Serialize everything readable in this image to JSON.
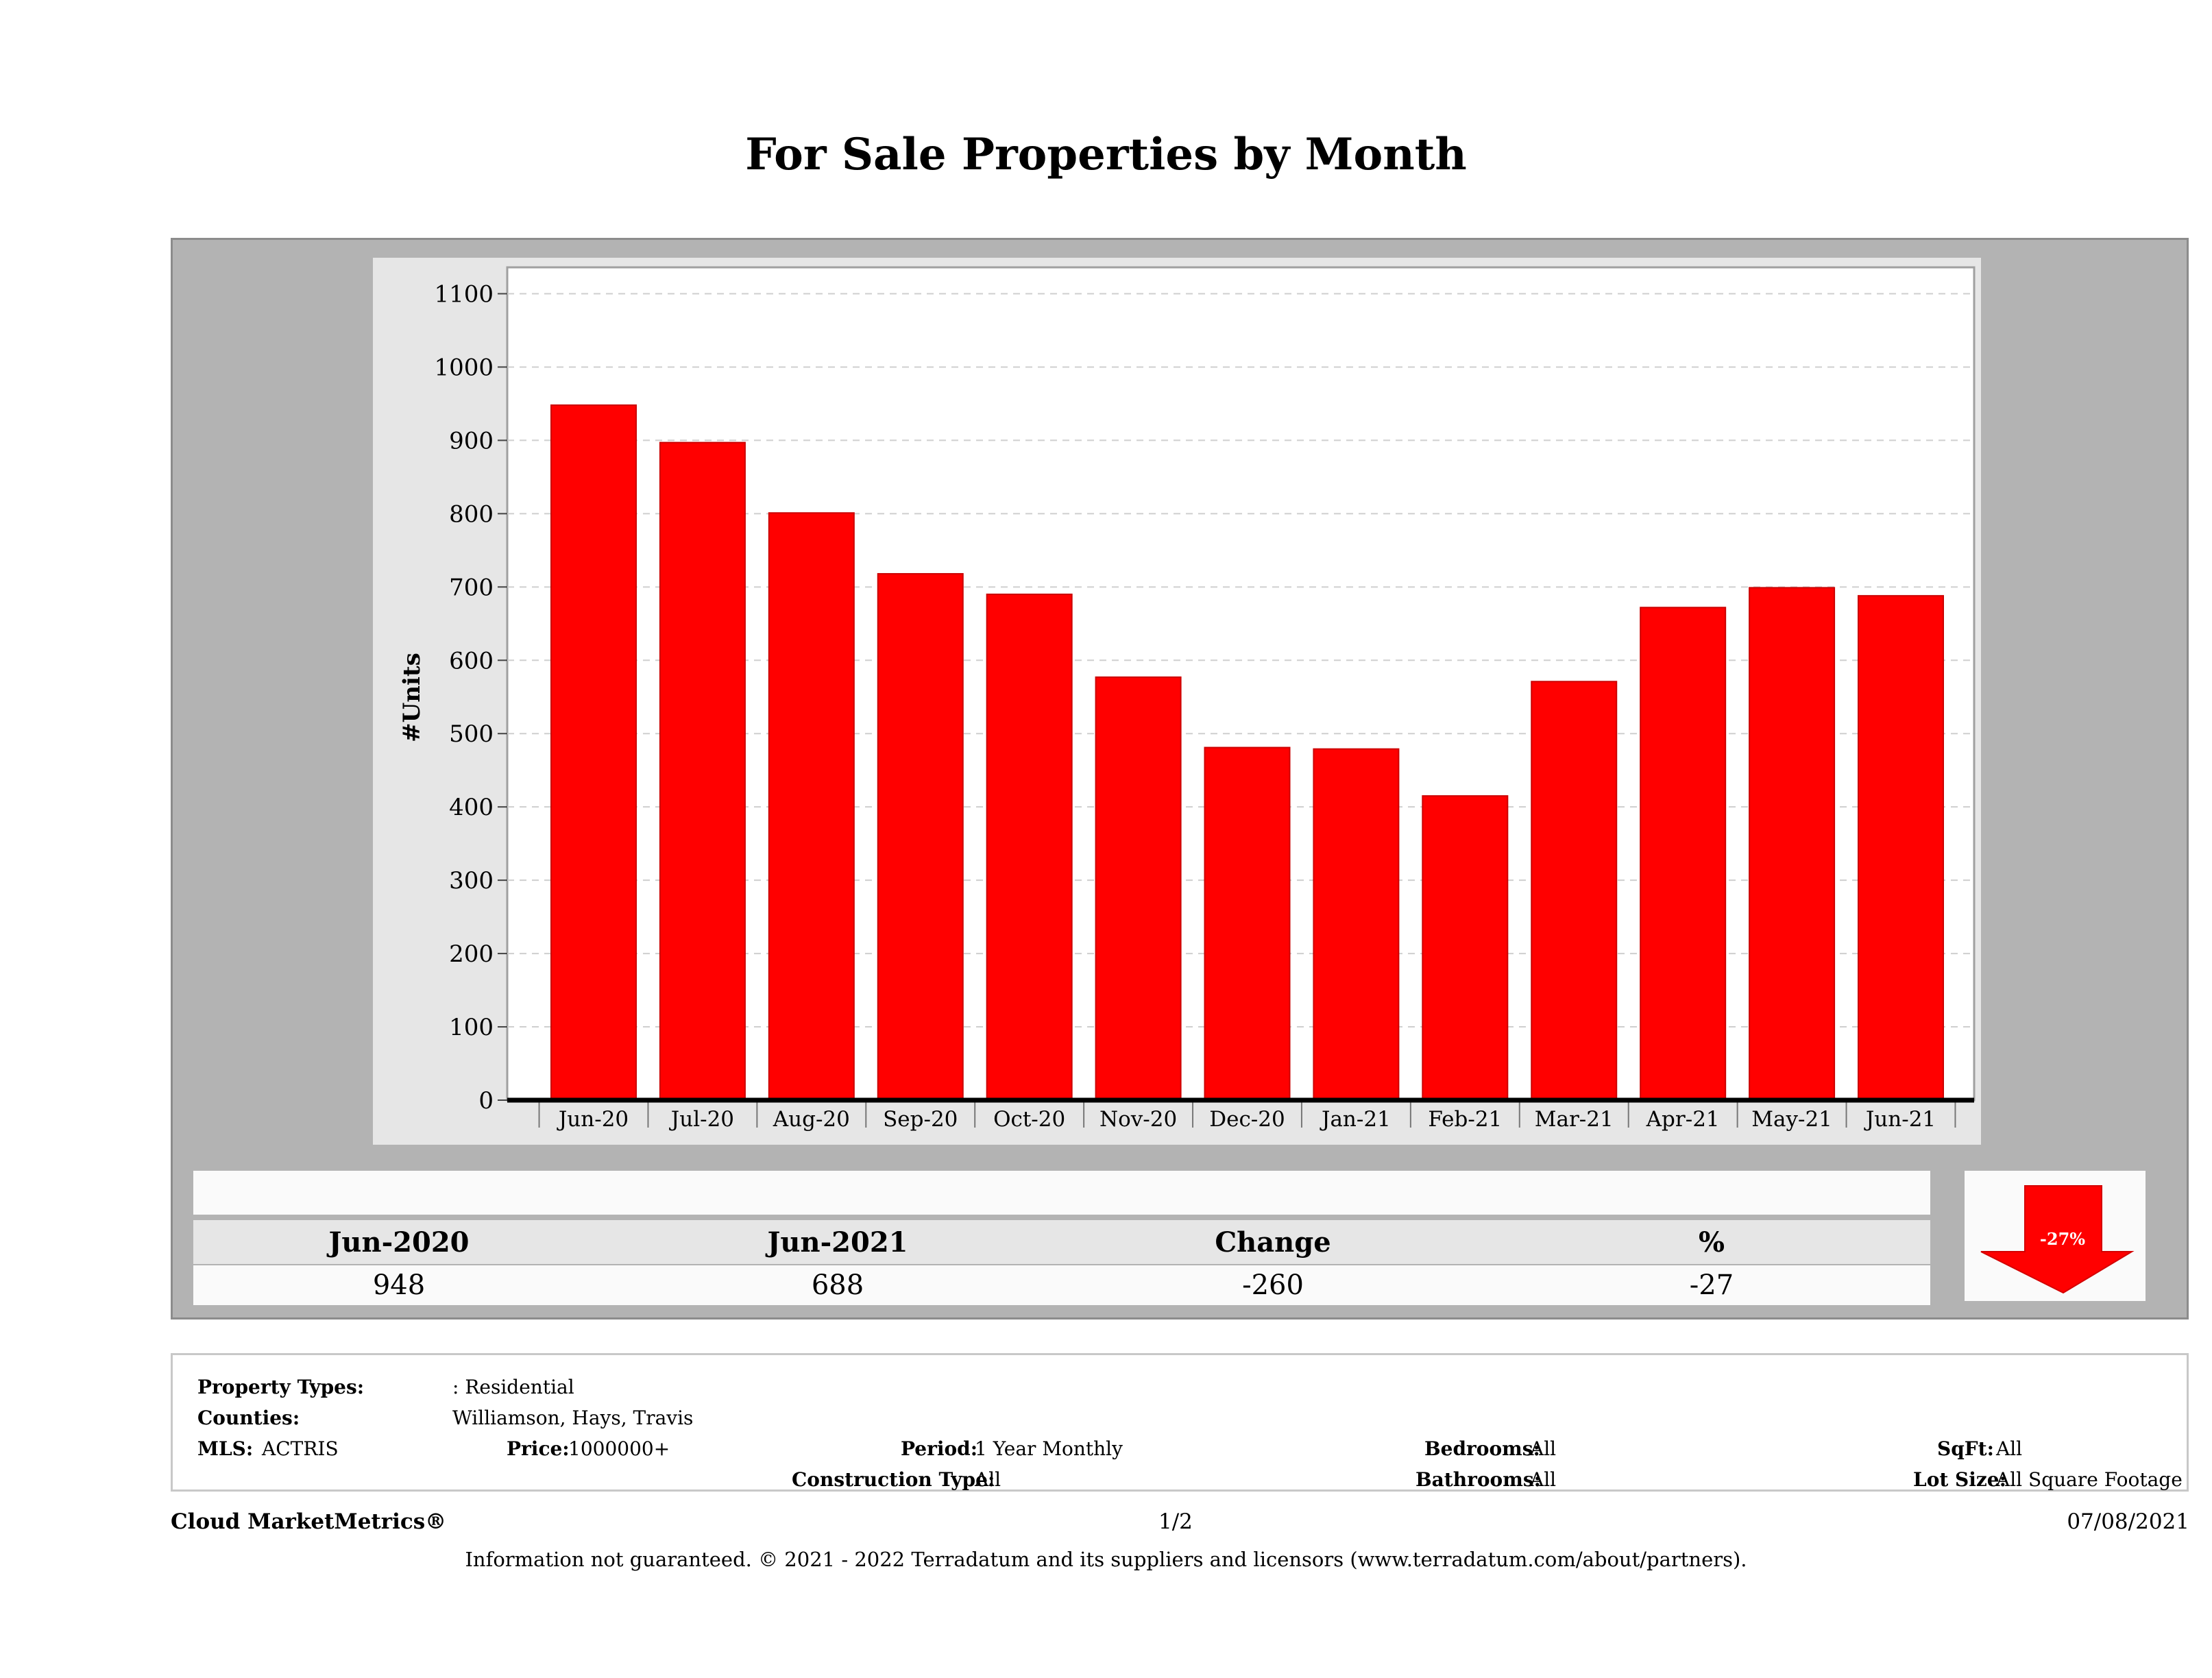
{
  "page": {
    "title": "For Sale Properties by Month"
  },
  "colors": {
    "bar": "#ff0000",
    "bar_stroke": "#cc0000",
    "panel": "#b3b3b3",
    "plot_frame": "#e6e6e6",
    "grid": "#cfcfcf",
    "arrow": "#ff0000"
  },
  "chart_data": {
    "type": "bar",
    "title": "For Sale Properties by Month",
    "xlabel": "",
    "ylabel": "#Units",
    "categories": [
      "Jun-20",
      "Jul-20",
      "Aug-20",
      "Sep-20",
      "Oct-20",
      "Nov-20",
      "Dec-20",
      "Jan-21",
      "Feb-21",
      "Mar-21",
      "Apr-21",
      "May-21",
      "Jun-21"
    ],
    "values": [
      948,
      897,
      801,
      718,
      690,
      577,
      481,
      479,
      415,
      571,
      672,
      699,
      688
    ],
    "ylim": [
      0,
      1100
    ],
    "yticks": [
      0,
      100,
      200,
      300,
      400,
      500,
      600,
      700,
      800,
      900,
      1000,
      1100
    ],
    "grid": true,
    "legend": "none"
  },
  "summary": {
    "headers": [
      "Jun-2020",
      "Jun-2021",
      "Change",
      "%"
    ],
    "values": [
      "948",
      "688",
      "-260",
      "-27"
    ],
    "badge": "-27%"
  },
  "filters": {
    "property_types_label": "Property Types:",
    "property_types_value": ": Residential",
    "counties_label": "Counties:",
    "counties_value": "Williamson, Hays, Travis",
    "mls_label": "MLS:",
    "mls_value": "ACTRIS",
    "price_label": "Price:",
    "price_value": "1000000+",
    "period_label": "Period:",
    "period_value": "1 Year Monthly",
    "construction_label": "Construction Type:",
    "construction_value": "All",
    "bedrooms_label": "Bedrooms:",
    "bedrooms_value": "All",
    "bathrooms_label": "Bathrooms:",
    "bathrooms_value": "All",
    "sqft_label": "SqFt:",
    "sqft_value": "All",
    "lotsize_label": "Lot Size:",
    "lotsize_value": "All Square Footage"
  },
  "footer": {
    "brand": "Cloud MarketMetrics®",
    "page": "1/2",
    "date": "07/08/2021",
    "disclaimer": "Information not guaranteed. © 2021 - 2022 Terradatum and its suppliers and licensors (www.terradatum.com/about/partners)."
  }
}
